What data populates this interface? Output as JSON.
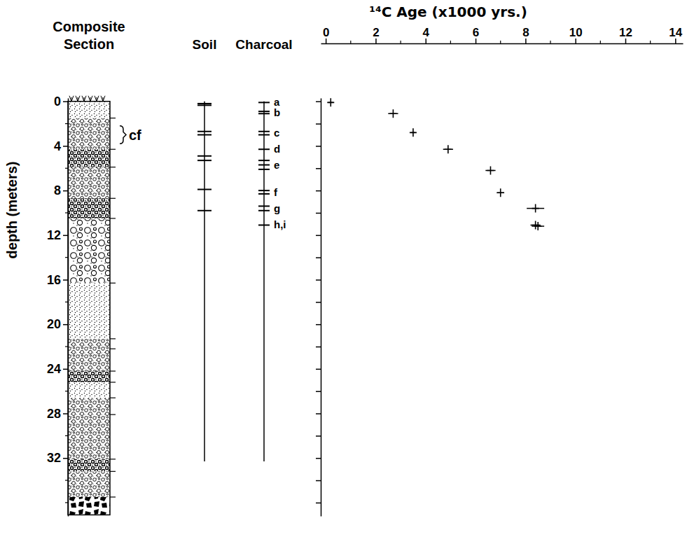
{
  "chart_data": {
    "type": "scatter",
    "x_label": "¹⁴C Age (x1000 yrs.)",
    "y_label": "depth (meters)",
    "xlim": [
      -0.2,
      14.3
    ],
    "xticks": [
      0,
      2,
      4,
      6,
      8,
      10,
      12,
      14
    ],
    "xminor_ticks": [
      1,
      3,
      5,
      7,
      9,
      11,
      13
    ],
    "ylim": [
      -0.3,
      37.2
    ],
    "yticks": [
      0,
      4,
      8,
      12,
      16,
      20,
      24,
      28,
      32
    ],
    "yminor_ticks": [
      2,
      6,
      10,
      14,
      18,
      22,
      26,
      30,
      34,
      36
    ],
    "series": [
      {
        "color": "#000000",
        "marker": "plus",
        "x": [
          0.2,
          2.7,
          3.5,
          4.9,
          6.6,
          7.0,
          8.4,
          8.4,
          8.5
        ],
        "x_errors": [
          0.1,
          0.2,
          0.08,
          0.2,
          0.2,
          0.15,
          0.35,
          0.2,
          0.25
        ],
        "values": [
          0.1,
          1.1,
          2.8,
          4.3,
          6.2,
          8.2,
          9.6,
          11.1,
          11.2
        ]
      }
    ],
    "column_depth": 32.3,
    "columns": {
      "section": {
        "title": "Composite Section",
        "beds": [
          {
            "top": 0,
            "bottom": 1.5,
            "fill": "sand"
          },
          {
            "top": 1.5,
            "bottom": 4.3,
            "fill": "gravel"
          },
          {
            "top": 4.3,
            "bottom": 5.9,
            "fill": "dense"
          },
          {
            "top": 5.9,
            "bottom": 8.7,
            "fill": "gravel"
          },
          {
            "top": 8.7,
            "bottom": 10.5,
            "fill": "dense"
          },
          {
            "top": 10.5,
            "bottom": 16.3,
            "fill": "coarse"
          },
          {
            "top": 16.3,
            "bottom": 21.3,
            "fill": "sand"
          },
          {
            "top": 21.3,
            "bottom": 22.2,
            "fill": "gravel"
          },
          {
            "top": 22.2,
            "bottom": 24.2,
            "fill": "gravel"
          },
          {
            "top": 24.2,
            "bottom": 25.2,
            "fill": "dense"
          },
          {
            "top": 25.2,
            "bottom": 26.6,
            "fill": "sand"
          },
          {
            "top": 26.6,
            "bottom": 28.1,
            "fill": "gravel"
          },
          {
            "top": 28.1,
            "bottom": 32.1,
            "fill": "gravel"
          },
          {
            "top": 32.1,
            "bottom": 33.2,
            "fill": "dense"
          },
          {
            "top": 33.2,
            "bottom": 35.5,
            "fill": "gravel"
          },
          {
            "top": 35.5,
            "bottom": 37.1,
            "fill": "bedrock"
          }
        ],
        "bracket": {
          "label": "cf",
          "top": 2.2,
          "bottom": 3.8
        }
      },
      "soil": {
        "title": "Soil",
        "horizons": [
          0.2,
          0.35,
          2.7,
          3.0,
          4.9,
          5.3,
          7.9,
          9.8
        ]
      },
      "charcoal": {
        "title": "Charcoal",
        "samples": [
          {
            "label": "a",
            "depths": [
              0.1
            ]
          },
          {
            "label": "b",
            "depths": [
              0.9,
              1.1
            ]
          },
          {
            "label": "c",
            "depths": [
              2.7,
              3.0
            ]
          },
          {
            "label": "d",
            "depths": [
              4.3
            ]
          },
          {
            "label": "e",
            "depths": [
              5.3,
              5.7,
              6.1
            ]
          },
          {
            "label": "f",
            "depths": [
              8.0,
              8.3
            ]
          },
          {
            "label": "g",
            "depths": [
              9.4,
              9.8
            ]
          },
          {
            "label": "h,i",
            "depths": [
              11.1
            ]
          }
        ]
      }
    }
  }
}
